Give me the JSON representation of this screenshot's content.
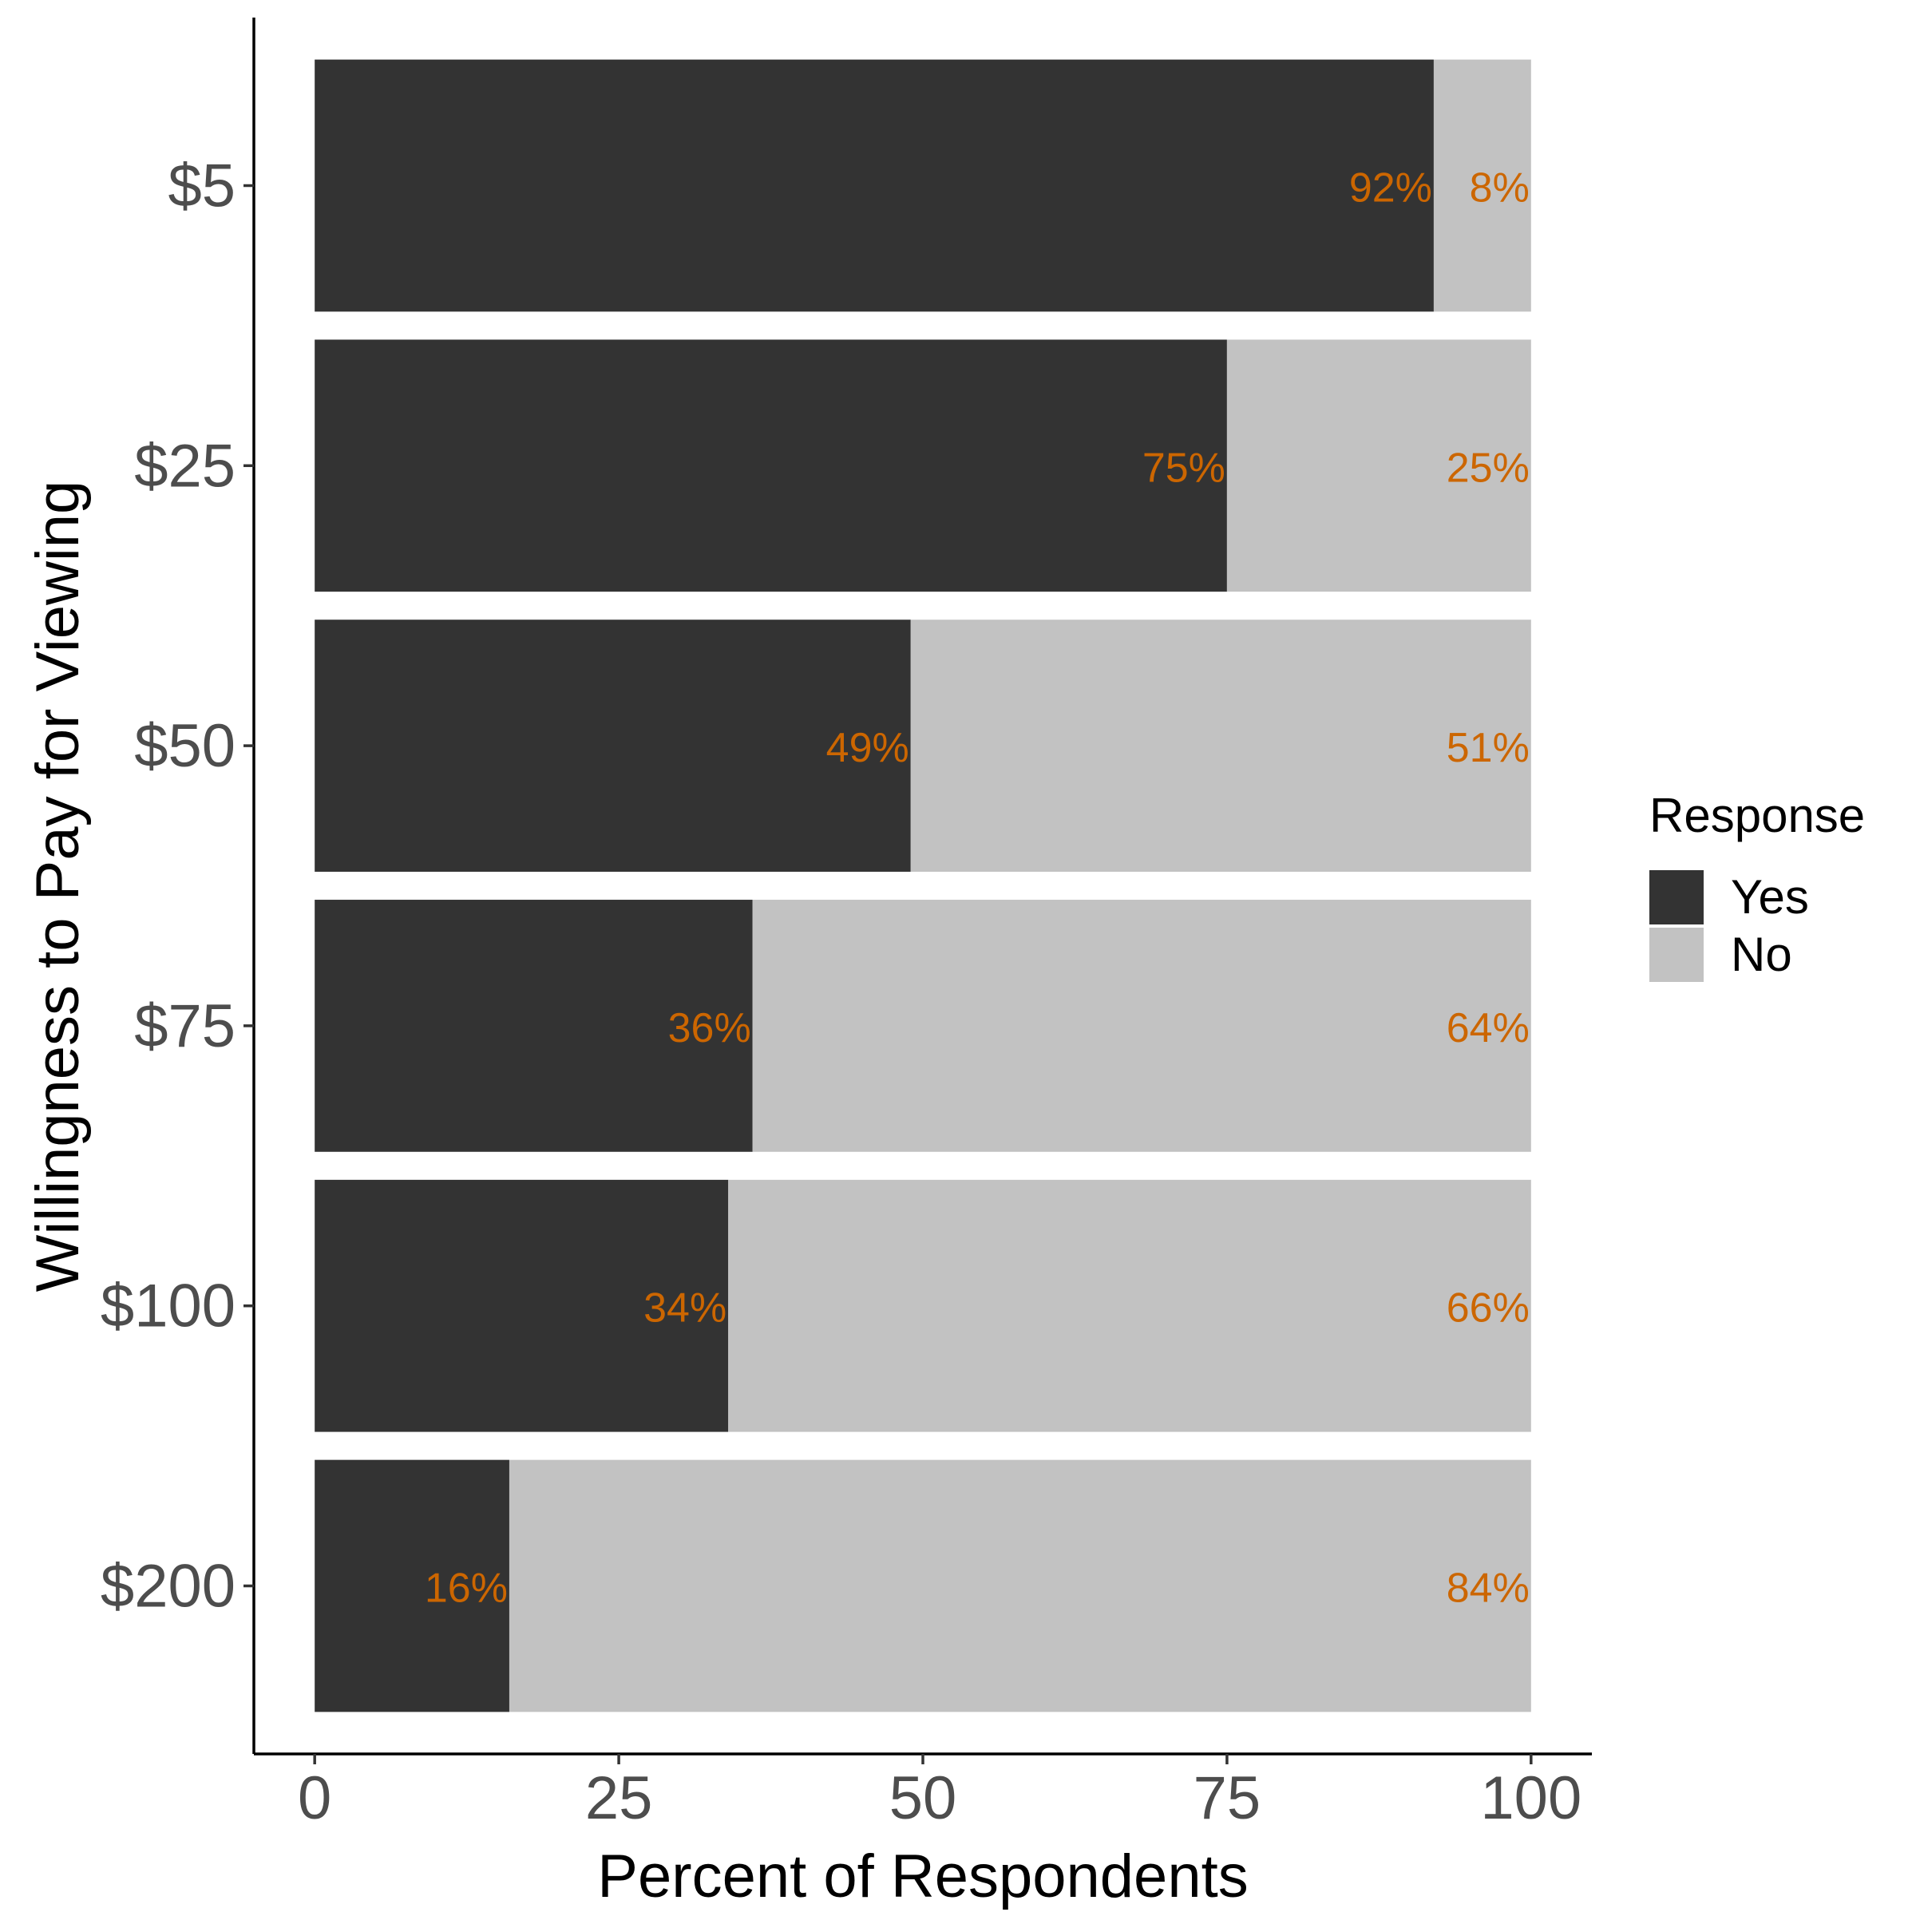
{
  "chart_data": {
    "type": "bar",
    "orientation": "horizontal",
    "stacked": true,
    "categories": [
      "$5",
      "$25",
      "$50",
      "$75",
      "$100",
      "$200"
    ],
    "series": [
      {
        "name": "Yes",
        "values": [
          92,
          75,
          49,
          36,
          34,
          16
        ],
        "labels": [
          "92%",
          "75%",
          "49%",
          "36%",
          "34%",
          "16%"
        ]
      },
      {
        "name": "No",
        "values": [
          8,
          25,
          51,
          64,
          66,
          84
        ],
        "labels": [
          "8%",
          "25%",
          "51%",
          "64%",
          "66%",
          "84%"
        ]
      }
    ],
    "xlabel": "Percent of Respondents",
    "ylabel": "Willingness to Pay for Viewing",
    "xlim": [
      -5,
      105
    ],
    "xticks": [
      0,
      25,
      50,
      75,
      100
    ],
    "xtick_labels": [
      "0",
      "25",
      "50",
      "75",
      "100"
    ],
    "grid": false,
    "legend": {
      "title": "Response",
      "placement": "right",
      "entries": [
        "Yes",
        "No"
      ]
    },
    "colors": {
      "Yes": "#333333",
      "No": "#c2c2c2",
      "data_label": "#cc6600",
      "axis": "#000000",
      "tick_label": "#4d4d4d"
    }
  }
}
